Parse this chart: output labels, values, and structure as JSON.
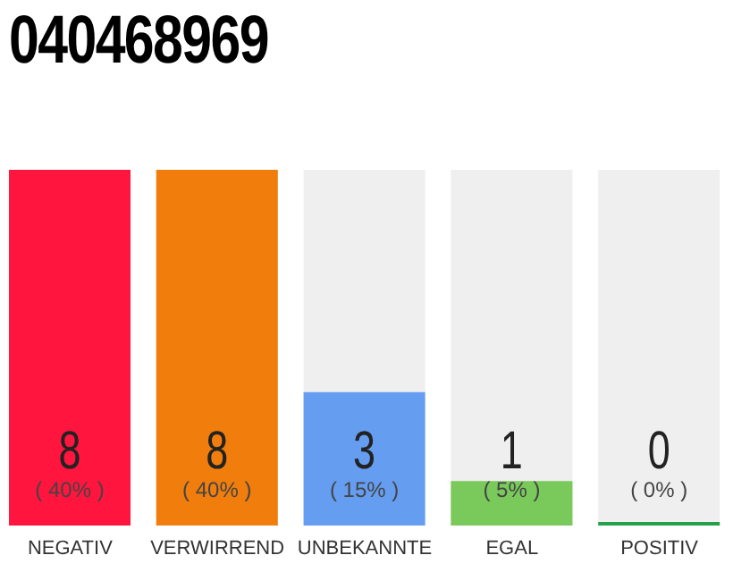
{
  "chart_data": {
    "type": "bar",
    "title": "040468969",
    "categories": [
      "NEGATIV",
      "VERWIRREND",
      "UNBEKANNTE",
      "EGAL",
      "POSITIV"
    ],
    "values": [
      8,
      8,
      3,
      1,
      0
    ],
    "colors": [
      "#ff153d",
      "#f07d0c",
      "#659df0",
      "#79c95b",
      "#22a04a"
    ],
    "value_labels": [
      "8",
      "8",
      "3",
      "1",
      "0"
    ],
    "annotations": [
      "( 40% )",
      "( 40% )",
      "( 15% )",
      "( 5% )",
      "( 0% )"
    ]
  }
}
